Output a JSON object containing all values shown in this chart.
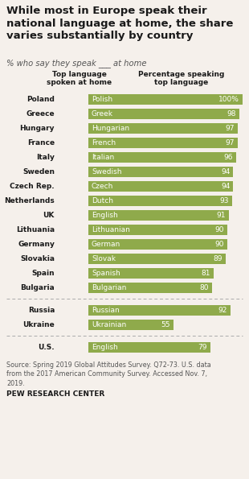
{
  "title": "While most in Europe speak their\nnational language at home, the share\nvaries substantially by country",
  "subtitle": "% who say they speak ___ at home",
  "col1_header": "Top language\nspoken at home",
  "col2_header": "Percentage speaking\ntop language",
  "europe_countries": [
    "Poland",
    "Greece",
    "Hungary",
    "France",
    "Italy",
    "Sweden",
    "Czech Rep.",
    "Netherlands",
    "UK",
    "Lithuania",
    "Germany",
    "Slovakia",
    "Spain",
    "Bulgaria"
  ],
  "europe_languages": [
    "Polish",
    "Greek",
    "Hungarian",
    "French",
    "Italian",
    "Swedish",
    "Czech",
    "Dutch",
    "English",
    "Lithuanian",
    "German",
    "Slovak",
    "Spanish",
    "Bulgarian"
  ],
  "europe_values": [
    100,
    98,
    97,
    97,
    96,
    94,
    94,
    93,
    91,
    90,
    90,
    89,
    81,
    80
  ],
  "russia_countries": [
    "Russia",
    "Ukraine"
  ],
  "russia_languages": [
    "Russian",
    "Ukrainian"
  ],
  "russia_values": [
    92,
    55
  ],
  "us_countries": [
    "U.S."
  ],
  "us_languages": [
    "English"
  ],
  "us_values": [
    79
  ],
  "bar_color": "#8faa4b",
  "source_text": "Source: Spring 2019 Global Attitudes Survey. Q72-73. U.S. data\nfrom the 2017 American Community Survey. Accessed Nov. 7,\n2019.",
  "footer": "PEW RESEARCH CENTER",
  "bg_color": "#f5f0eb",
  "max_val": 100
}
